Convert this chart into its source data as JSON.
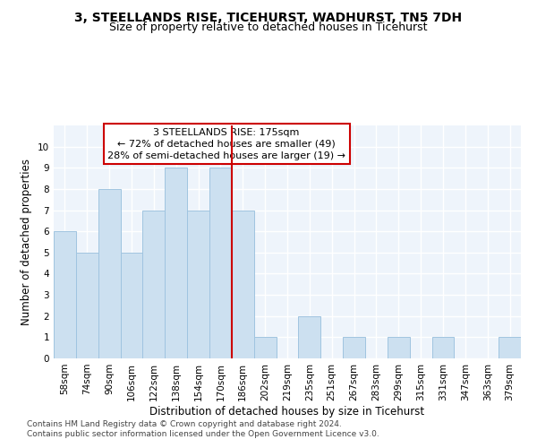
{
  "title": "3, STEELLANDS RISE, TICEHURST, WADHURST, TN5 7DH",
  "subtitle": "Size of property relative to detached houses in Ticehurst",
  "xlabel": "Distribution of detached houses by size in Ticehurst",
  "ylabel": "Number of detached properties",
  "bar_labels": [
    "58sqm",
    "74sqm",
    "90sqm",
    "106sqm",
    "122sqm",
    "138sqm",
    "154sqm",
    "170sqm",
    "186sqm",
    "202sqm",
    "219sqm",
    "235sqm",
    "251sqm",
    "267sqm",
    "283sqm",
    "299sqm",
    "315sqm",
    "331sqm",
    "347sqm",
    "363sqm",
    "379sqm"
  ],
  "bar_values": [
    6,
    5,
    8,
    5,
    7,
    9,
    7,
    9,
    7,
    1,
    0,
    2,
    0,
    1,
    0,
    1,
    0,
    1,
    0,
    0,
    1
  ],
  "bar_color": "#cce0f0",
  "bar_edge_color": "#a0c4e0",
  "reference_line_x": 7.5,
  "reference_line_label": "3 STEELLANDS RISE: 175sqm",
  "annotation_line1": "← 72% of detached houses are smaller (49)",
  "annotation_line2": "28% of semi-detached houses are larger (19) →",
  "ylim": [
    0,
    11
  ],
  "yticks": [
    0,
    1,
    2,
    3,
    4,
    5,
    6,
    7,
    8,
    9,
    10,
    11
  ],
  "background_color": "#eef4fb",
  "grid_color": "#ffffff",
  "footer_line1": "Contains HM Land Registry data © Crown copyright and database right 2024.",
  "footer_line2": "Contains public sector information licensed under the Open Government Licence v3.0.",
  "annotation_box_color": "#cc0000",
  "title_fontsize": 10,
  "subtitle_fontsize": 9,
  "axis_label_fontsize": 8.5,
  "tick_fontsize": 7.5,
  "annotation_fontsize": 8,
  "footer_fontsize": 6.5
}
